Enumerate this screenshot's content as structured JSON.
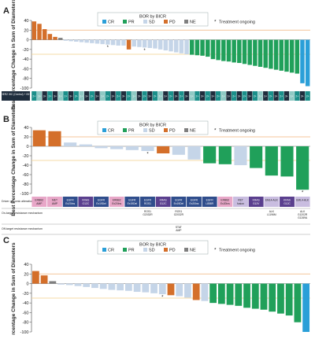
{
  "legend": {
    "title": "BOR by BICR",
    "items": [
      {
        "code": "CR",
        "label": "CR"
      },
      {
        "code": "PR",
        "label": "PR"
      },
      {
        "code": "SD",
        "label": "SD"
      },
      {
        "code": "PD",
        "label": "PD"
      },
      {
        "code": "NE",
        "label": "NE"
      }
    ],
    "ongoing_marker": "*",
    "ongoing_label": "Treatment ongoing"
  },
  "colors": {
    "CR": "#2a9fd8",
    "PR": "#20a05a",
    "SD": "#c5d5e8",
    "PD": "#d46f2a",
    "NE": "#7f7f7f",
    "ref_upper": "#f0b27a",
    "ref_lower": "#f2cf8a",
    "cell_dark": "#1f2d3d",
    "cell_teal": "#1b8f8a",
    "cell_purple": "#5a3f8e",
    "cell_pink": "#e8a7c8",
    "cell_lavender": "#c9bde0"
  },
  "chart_data": [
    {
      "panel": "A",
      "type": "bar",
      "ylabel": "Best Percentage Change in Sum of Diameters",
      "ylim": [
        -100,
        40
      ],
      "yticks": [
        40,
        20,
        0,
        -20,
        -40,
        -60,
        -80,
        -100
      ],
      "reference_lines": [
        20,
        -30
      ],
      "values": [
        38,
        33,
        22,
        12,
        6,
        4,
        -2,
        -3,
        -4,
        -5,
        -6,
        -7,
        -8,
        -9,
        -10,
        -11,
        -12,
        -12,
        -20,
        -14,
        -15,
        -16,
        -17,
        -18,
        -20,
        -22,
        -24,
        -26,
        -28,
        -30,
        -31,
        -32,
        -33,
        -35,
        -40,
        -42,
        -44,
        -45,
        -47,
        -48,
        -50,
        -52,
        -54,
        -56,
        -58,
        -60,
        -62,
        -64,
        -66,
        -68,
        -70,
        -90,
        -96
      ],
      "bor": [
        "PD",
        "PD",
        "PD",
        "PD",
        "PD",
        "NE",
        "SD",
        "SD",
        "SD",
        "SD",
        "SD",
        "SD",
        "SD",
        "SD",
        "SD",
        "SD",
        "SD",
        "SD",
        "PD",
        "SD",
        "SD",
        "SD",
        "SD",
        "SD",
        "SD",
        "SD",
        "SD",
        "SD",
        "SD",
        "SD",
        "PR",
        "PR",
        "PR",
        "PR",
        "PR",
        "PR",
        "PR",
        "PR",
        "PR",
        "PR",
        "PR",
        "PR",
        "PR",
        "PR",
        "PR",
        "PR",
        "PR",
        "PR",
        "PR",
        "PR",
        "PR",
        "CR",
        "CR"
      ],
      "ongoing": [
        false,
        false,
        false,
        false,
        false,
        false,
        false,
        false,
        false,
        false,
        false,
        false,
        false,
        false,
        true,
        false,
        false,
        false,
        false,
        false,
        false,
        true,
        false,
        false,
        false,
        false,
        false,
        false,
        false,
        false,
        false,
        false,
        false,
        false,
        false,
        false,
        false,
        false,
        false,
        false,
        false,
        false,
        false,
        false,
        false,
        false,
        false,
        false,
        false,
        false,
        false,
        false,
        false
      ],
      "table_row_label": "HER2 IHC (Central) + ISH",
      "table_values": [
        "2+",
        "1+",
        "3+",
        "2+",
        "3+",
        "1+",
        "2+",
        "3+",
        "2+",
        "1+",
        "3+",
        "2+",
        "3+",
        "1+",
        "2+",
        "3+",
        "2+",
        "3+",
        "2+",
        "1+",
        "3+",
        "2+",
        "3+",
        "2+",
        "1+",
        "3+",
        "2+",
        "3+",
        "2+",
        "3+",
        "1+",
        "2+",
        "3+",
        "2+",
        "3+",
        "2+",
        "1+",
        "3+",
        "2+",
        "3+",
        "2+",
        "3+",
        "2+",
        "1+",
        "3+",
        "2+",
        "3+",
        "2+",
        "3+",
        "1+",
        "2+",
        "3+",
        "2+"
      ]
    },
    {
      "panel": "B",
      "type": "bar",
      "ylabel": "Best Percentage Change in Sum of Diameters",
      "ylim": [
        -100,
        40
      ],
      "yticks": [
        40,
        20,
        0,
        -20,
        -40,
        -60,
        -80,
        -100
      ],
      "reference_lines": [
        20,
        -30
      ],
      "values": [
        34,
        32,
        8,
        4,
        -4,
        -6,
        -8,
        -10,
        -15,
        -18,
        -28,
        -36,
        -38,
        -40,
        -46,
        -62,
        -64,
        -92
      ],
      "bor": [
        "PD",
        "PD",
        "SD",
        "SD",
        "SD",
        "SD",
        "SD",
        "SD",
        "PD",
        "SD",
        "SD",
        "PR",
        "PR",
        "SD",
        "PR",
        "PR",
        "PR",
        "PR"
      ],
      "ongoing": [
        false,
        false,
        false,
        false,
        false,
        false,
        false,
        true,
        false,
        false,
        false,
        false,
        false,
        false,
        false,
        false,
        false,
        true
      ],
      "driver_row_label": "Driver genomic alteration",
      "drivers": [
        "ERBB2 AMP",
        "MET AMP",
        "EGFR Ex20Ins",
        "KRAS G12C",
        "EGFR Ex19Del",
        "ERBB2 Ex20Ins",
        "EGFR Ex19Del",
        "EGFR ROS1",
        "KRAS G12C",
        "EGFR Ex19Del",
        "EGFR Ex20Ins",
        "EGFR L858R",
        "ERBB2 Ex20Ins",
        "RET fusion",
        "KRAS G12V",
        "EML4-ALK",
        "KRAS G12C",
        "EML4-ALK"
      ],
      "on_target_label": "On-target resistance mechanism",
      "on_target": [
        {
          "index": 7,
          "text": "ROS1 G2032R"
        },
        {
          "index": 9,
          "text": "ROS1 G2032R"
        },
        {
          "index": 15,
          "text": "ALK L1196M"
        },
        {
          "index": 17,
          "text": "ALK G1202R G1269A"
        }
      ],
      "off_target_label": "Off-target resistance mechanism",
      "off_target": [
        {
          "index": 9,
          "text": "STAT AMP"
        }
      ]
    },
    {
      "panel": "C",
      "type": "bar",
      "ylabel": "Best Percentage Change in Sum of Diameters",
      "ylim": [
        -100,
        40
      ],
      "yticks": [
        40,
        20,
        0,
        -20,
        -40,
        -60,
        -80,
        -100
      ],
      "reference_lines": [
        20,
        -30
      ],
      "values": [
        26,
        17,
        5,
        -2,
        -3,
        -5,
        -7,
        -9,
        -11,
        -13,
        -14,
        -15,
        -17,
        -18,
        -20,
        -22,
        -24,
        -26,
        -29,
        -34,
        -36,
        -40,
        -42,
        -44,
        -46,
        -50,
        -52,
        -54,
        -58,
        -62,
        -66,
        -80,
        -100
      ],
      "bor": [
        "PD",
        "PD",
        "NE",
        "SD",
        "SD",
        "SD",
        "SD",
        "SD",
        "SD",
        "SD",
        "SD",
        "SD",
        "SD",
        "SD",
        "SD",
        "SD",
        "PD",
        "SD",
        "SD",
        "PD",
        "SD",
        "PR",
        "PR",
        "PR",
        "PR",
        "PR",
        "PR",
        "PR",
        "PR",
        "PR",
        "PR",
        "PR",
        "CR"
      ],
      "ongoing": [
        false,
        false,
        false,
        false,
        false,
        false,
        false,
        false,
        false,
        false,
        false,
        false,
        false,
        false,
        false,
        true,
        false,
        false,
        false,
        false,
        false,
        false,
        false,
        false,
        false,
        false,
        false,
        false,
        false,
        false,
        false,
        false,
        false
      ]
    }
  ],
  "panel_labels": [
    "A",
    "B",
    "C"
  ]
}
